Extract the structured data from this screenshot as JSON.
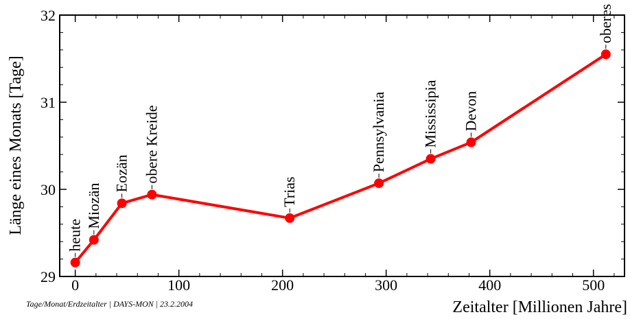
{
  "chart_data": {
    "type": "line",
    "xlabel": "Zeitalter [Millionen Jahre]",
    "ylabel": "Länge eines Monats [Tage]",
    "xlim": [
      -15,
      530
    ],
    "ylim": [
      29,
      32
    ],
    "x_ticks": [
      0,
      100,
      200,
      300,
      400,
      500
    ],
    "y_ticks": [
      29,
      30,
      31,
      32
    ],
    "line_color": "#ff0000",
    "points": [
      {
        "label": "heute",
        "x": 0,
        "y": 29.16
      },
      {
        "label": "Miozän",
        "x": 18,
        "y": 29.42
      },
      {
        "label": "Eozän",
        "x": 45,
        "y": 29.84
      },
      {
        "label": "obere Kreide",
        "x": 74,
        "y": 29.94
      },
      {
        "label": "Trias",
        "x": 207,
        "y": 29.67
      },
      {
        "label": "Pennsylvania",
        "x": 293,
        "y": 30.07
      },
      {
        "label": "Mississipia",
        "x": 343,
        "y": 30.35
      },
      {
        "label": "Devon",
        "x": 382,
        "y": 30.54
      },
      {
        "label": "oberes Kambium",
        "x": 512,
        "y": 31.55
      }
    ]
  },
  "footer": "Tage/Monat/Erdzeitalter | DAYS-MON | 23.2.2004"
}
